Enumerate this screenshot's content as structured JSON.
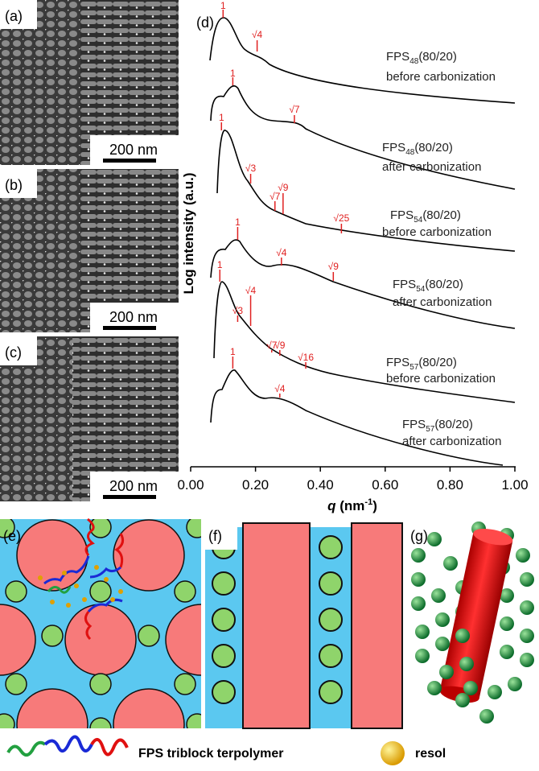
{
  "panels": {
    "a": {
      "label": "(a)",
      "scale_bar": "200 nm"
    },
    "b": {
      "label": "(b)",
      "scale_bar": "200 nm"
    },
    "c": {
      "label": "(c)",
      "scale_bar": "200 nm"
    },
    "e": {
      "label": "(e)"
    },
    "f": {
      "label": "(f)"
    },
    "g": {
      "label": "(g)"
    }
  },
  "chart_data": {
    "type": "line",
    "panel_label": "(d)",
    "y_label": "Log intensity (a.u.)",
    "x_label": {
      "symbol": "q",
      "unit": "(nm",
      "exponent": "-1",
      "close": ")"
    },
    "xlim": [
      0,
      1
    ],
    "xticks": [
      {
        "value": 0,
        "label": "0.00"
      },
      {
        "value": 0.2,
        "label": "0.20"
      },
      {
        "value": 0.4,
        "label": "0.40"
      },
      {
        "value": 0.6,
        "label": "0.60"
      },
      {
        "value": 0.8,
        "label": "0.80"
      },
      {
        "value": 1,
        "label": "1.00"
      }
    ],
    "curves": [
      {
        "name": {
          "prefix": "FPS",
          "subscript": "48",
          "suffix": "(80/20)"
        },
        "condition": "before carbonization",
        "peaks": [
          {
            "label": "1",
            "q": 0.1
          },
          {
            "label": "√4",
            "q": 0.205
          }
        ]
      },
      {
        "name": {
          "prefix": "FPS",
          "subscript": "48",
          "suffix": "(80/20)"
        },
        "condition": "after carbonization",
        "peaks": [
          {
            "label": "1",
            "q": 0.13
          },
          {
            "label": "√7",
            "q": 0.32
          }
        ]
      },
      {
        "name": {
          "prefix": "FPS",
          "subscript": "54",
          "suffix": "(80/20)"
        },
        "condition": "before carbonization",
        "peaks": [
          {
            "label": "1",
            "q": 0.095
          },
          {
            "label": "√3",
            "q": 0.185
          },
          {
            "label": "√7",
            "q": 0.26
          },
          {
            "label": "√9",
            "q": 0.285
          },
          {
            "label": "√25",
            "q": 0.465
          }
        ]
      },
      {
        "name": {
          "prefix": "FPS",
          "subscript": "54",
          "suffix": "(80/20)"
        },
        "condition": "after carbonization",
        "peaks": [
          {
            "label": "1",
            "q": 0.145
          },
          {
            "label": "√4",
            "q": 0.28
          },
          {
            "label": "√9",
            "q": 0.44
          }
        ]
      },
      {
        "name": {
          "prefix": "FPS",
          "subscript": "57",
          "suffix": "(80/20)"
        },
        "condition": "before carbonization",
        "peaks": [
          {
            "label": "1",
            "q": 0.09
          },
          {
            "label": "√3",
            "q": 0.145
          },
          {
            "label": "√4",
            "q": 0.185
          },
          {
            "label": "√7",
            "q": 0.25
          },
          {
            "label": "√9",
            "q": 0.275
          },
          {
            "label": "√16",
            "q": 0.355
          }
        ]
      },
      {
        "name": {
          "prefix": "FPS",
          "subscript": "57",
          "suffix": "(80/20)"
        },
        "condition": "after carbonization",
        "peaks": [
          {
            "label": "1",
            "q": 0.13
          },
          {
            "label": "√4",
            "q": 0.275
          }
        ]
      }
    ]
  },
  "legend": {
    "polymer": "FPS triblock terpolymer",
    "resol": "resol"
  }
}
